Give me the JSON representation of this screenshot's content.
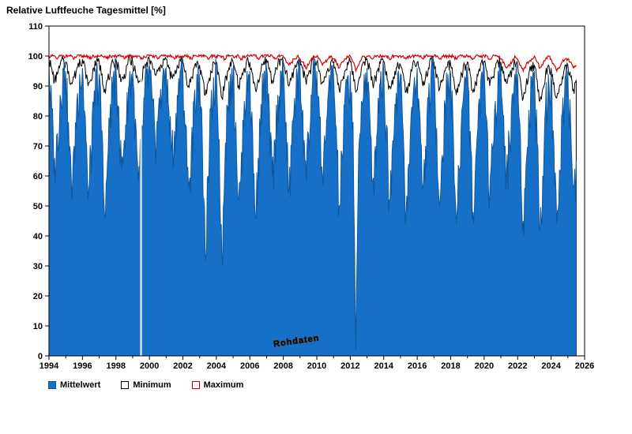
{
  "chart_data": {
    "type": "area",
    "title": "Relative Luftfeuche Tagesmittel [%]",
    "watermark": "Rohdaten",
    "xlabel": "",
    "ylabel": "",
    "xlim": [
      1994,
      2026
    ],
    "ylim": [
      0,
      110
    ],
    "y_ticks": [
      0,
      10,
      20,
      30,
      40,
      50,
      60,
      70,
      80,
      90,
      100,
      110
    ],
    "x_ticks": [
      1994,
      1996,
      1998,
      2000,
      2002,
      2004,
      2006,
      2008,
      2010,
      2012,
      2014,
      2016,
      2018,
      2020,
      2022,
      2024,
      2026
    ],
    "grid": false,
    "legend_position": "bottom-left",
    "x_start": 1994.0,
    "x_step_years": 0.1666667,
    "x_end": 2025.5,
    "data_gaps_x": [
      1999.5
    ],
    "series": [
      {
        "name": "Mittelwert",
        "style": "area",
        "fill": "#1670c8",
        "color": "#0f58a0",
        "values": [
          97,
          82,
          66,
          74,
          87,
          96,
          95,
          78,
          58,
          70,
          85,
          94,
          96,
          80,
          52,
          68,
          83,
          95,
          94,
          75,
          46,
          65,
          84,
          93,
          96,
          83,
          62,
          72,
          88,
          95,
          95,
          79,
          58,
          70,
          86,
          94,
          97,
          85,
          74,
          78,
          89,
          96,
          96,
          82,
          70,
          75,
          87,
          95,
          95,
          77,
          56,
          68,
          85,
          94,
          94,
          70,
          34,
          60,
          82,
          93,
          95,
          72,
          33,
          62,
          83,
          94,
          96,
          78,
          52,
          68,
          85,
          95,
          95,
          74,
          46,
          66,
          84,
          94,
          96,
          81,
          60,
          72,
          87,
          95,
          95,
          78,
          55,
          70,
          86,
          94,
          96,
          82,
          65,
          74,
          87,
          95,
          95,
          79,
          60,
          71,
          86,
          94,
          94,
          76,
          50,
          67,
          84,
          93,
          95,
          78,
          2,
          68,
          85,
          94,
          96,
          80,
          58,
          70,
          86,
          95,
          95,
          77,
          52,
          68,
          84,
          94,
          94,
          74,
          48,
          64,
          83,
          93,
          96,
          79,
          56,
          70,
          86,
          95,
          95,
          76,
          50,
          67,
          84,
          94,
          94,
          72,
          44,
          62,
          82,
          93,
          95,
          75,
          48,
          66,
          84,
          94,
          96,
          78,
          54,
          69,
          85,
          95,
          95,
          80,
          62,
          72,
          87,
          94,
          94,
          73,
          45,
          63,
          82,
          93,
          95,
          71,
          42,
          60,
          83,
          94,
          94,
          70,
          44,
          62,
          81,
          93,
          95,
          78,
          56,
          65
        ]
      },
      {
        "name": "Minimum",
        "style": "area",
        "fill": "#ffffff",
        "color": "#000000",
        "values": [
          99,
          96,
          92,
          94,
          97,
          99,
          98,
          95,
          91,
          93,
          96,
          99,
          99,
          96,
          90,
          92,
          96,
          98,
          98,
          94,
          89,
          92,
          95,
          98,
          99,
          96,
          92,
          94,
          97,
          99,
          98,
          95,
          91,
          93,
          96,
          98,
          99,
          97,
          94,
          95,
          97,
          99,
          99,
          96,
          93,
          94,
          97,
          99,
          98,
          95,
          90,
          93,
          96,
          98,
          97,
          93,
          87,
          91,
          95,
          98,
          98,
          93,
          86,
          91,
          95,
          98,
          98,
          95,
          90,
          93,
          96,
          99,
          98,
          94,
          89,
          92,
          95,
          98,
          99,
          96,
          92,
          94,
          97,
          99,
          98,
          95,
          90,
          93,
          96,
          98,
          99,
          96,
          92,
          94,
          97,
          99,
          98,
          95,
          91,
          93,
          96,
          98,
          98,
          94,
          89,
          92,
          95,
          98,
          98,
          95,
          88,
          92,
          96,
          98,
          99,
          96,
          91,
          93,
          96,
          99,
          98,
          95,
          90,
          92,
          95,
          98,
          97,
          94,
          88,
          91,
          95,
          98,
          98,
          95,
          90,
          93,
          96,
          99,
          98,
          94,
          89,
          92,
          95,
          98,
          97,
          93,
          87,
          90,
          94,
          97,
          98,
          94,
          88,
          91,
          95,
          98,
          98,
          95,
          90,
          93,
          96,
          98,
          98,
          95,
          91,
          93,
          96,
          98,
          97,
          92,
          86,
          90,
          94,
          97,
          97,
          92,
          85,
          89,
          94,
          97,
          96,
          91,
          86,
          90,
          93,
          97,
          97,
          93,
          89,
          92
        ]
      },
      {
        "name": "Maximum",
        "style": "line",
        "fill": "none",
        "color": "#d40000",
        "values": [
          100,
          100,
          100,
          99,
          100,
          100,
          100,
          100,
          100,
          99,
          100,
          100,
          100,
          100,
          100,
          99,
          100,
          100,
          100,
          100,
          100,
          99,
          100,
          100,
          100,
          100,
          100,
          99,
          100,
          100,
          100,
          100,
          100,
          99,
          100,
          100,
          100,
          100,
          100,
          99,
          100,
          100,
          100,
          100,
          100,
          99,
          100,
          100,
          100,
          100,
          100,
          99,
          100,
          100,
          100,
          100,
          100,
          99,
          100,
          100,
          100,
          100,
          100,
          99,
          100,
          100,
          100,
          100,
          100,
          99,
          100,
          100,
          100,
          100,
          100,
          99,
          100,
          100,
          100,
          100,
          100,
          99,
          100,
          100,
          100,
          98,
          97,
          98,
          99,
          100,
          99,
          98,
          96,
          97,
          99,
          100,
          100,
          99,
          97,
          98,
          99,
          100,
          99,
          98,
          96,
          98,
          99,
          100,
          100,
          98,
          95,
          97,
          99,
          100,
          100,
          100,
          99,
          100,
          100,
          100,
          100,
          100,
          99,
          100,
          100,
          100,
          100,
          100,
          99,
          100,
          100,
          100,
          100,
          100,
          99,
          100,
          100,
          100,
          100,
          100,
          99,
          100,
          100,
          100,
          100,
          100,
          99,
          100,
          100,
          100,
          100,
          100,
          99,
          100,
          100,
          100,
          100,
          100,
          99,
          100,
          100,
          100,
          99,
          98,
          96,
          97,
          98,
          100,
          99,
          97,
          95,
          97,
          98,
          99,
          100,
          98,
          96,
          97,
          99,
          100,
          99,
          97,
          95,
          96,
          98,
          99,
          99,
          98,
          96,
          97
        ]
      }
    ]
  }
}
